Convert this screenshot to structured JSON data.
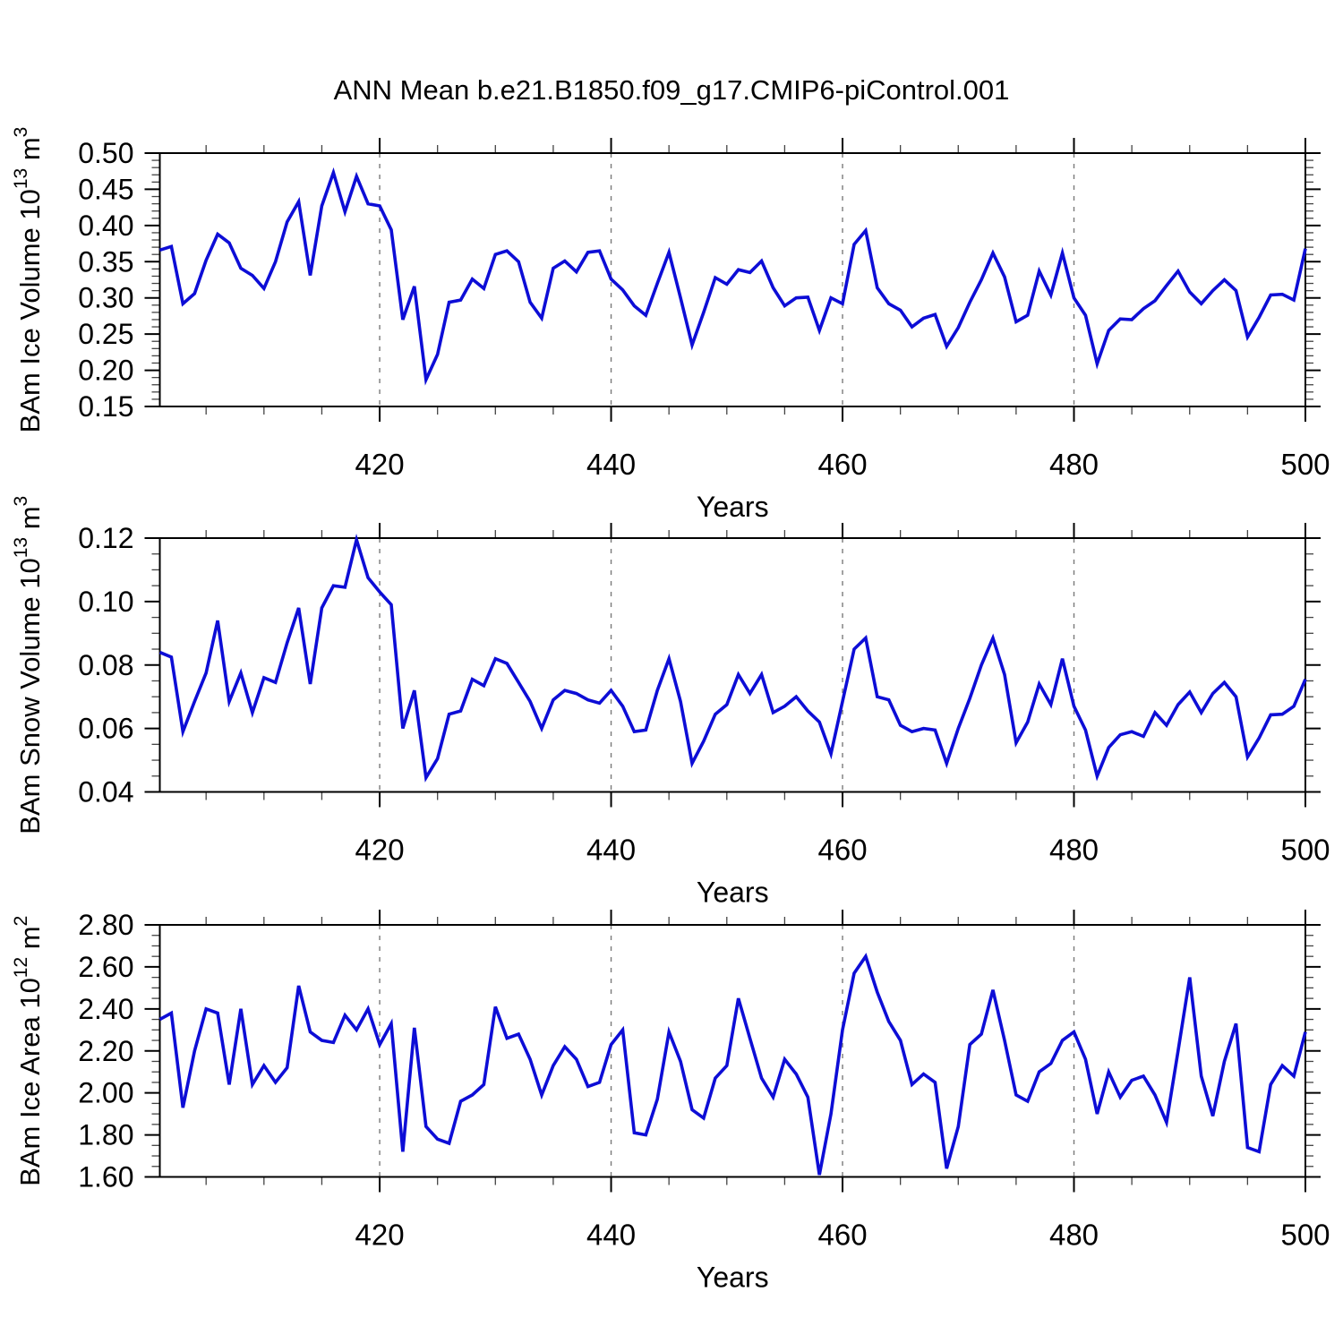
{
  "title": "ANN Mean b.e21.B1850.f09_g17.CMIP6-piControl.001",
  "colors": {
    "line": "#0d0dd6",
    "axis": "#000000",
    "gridline": "#7a7a7a",
    "background": "#ffffff"
  },
  "x_axis": {
    "label": "Years",
    "range": [
      401,
      500
    ],
    "major_ticks": [
      420,
      440,
      460,
      480,
      500
    ],
    "major_tick_labels": [
      "420",
      "440",
      "460",
      "480",
      "500"
    ],
    "minor_tick_step": 5,
    "gridline_years": [
      420,
      440,
      460,
      480
    ]
  },
  "chart_data": [
    {
      "type": "line",
      "id": "ice-volume",
      "ylabel": "BAm Ice Volume 10^13 m^3",
      "ylabel_segments": [
        {
          "t": "BAm Ice Volume 10"
        },
        {
          "t": "13",
          "sup": true
        },
        {
          "t": " m"
        },
        {
          "t": "3",
          "sup": true
        }
      ],
      "ylim": [
        0.15,
        0.5
      ],
      "ytick_step": 0.05,
      "yminor_step": 0.01,
      "ytick_labels": [
        "0.15",
        "0.20",
        "0.25",
        "0.30",
        "0.35",
        "0.40",
        "0.45",
        "0.50"
      ],
      "x_start": 401,
      "values": [
        0.366,
        0.371,
        0.292,
        0.306,
        0.352,
        0.388,
        0.376,
        0.341,
        0.331,
        0.313,
        0.35,
        0.405,
        0.433,
        0.331,
        0.427,
        0.473,
        0.419,
        0.468,
        0.43,
        0.427,
        0.394,
        0.27,
        0.316,
        0.187,
        0.222,
        0.294,
        0.297,
        0.326,
        0.313,
        0.36,
        0.365,
        0.35,
        0.294,
        0.272,
        0.341,
        0.351,
        0.336,
        0.363,
        0.365,
        0.326,
        0.311,
        0.289,
        0.276,
        0.32,
        0.363,
        0.3,
        0.235,
        0.28,
        0.328,
        0.319,
        0.339,
        0.335,
        0.351,
        0.314,
        0.289,
        0.3,
        0.301,
        0.255,
        0.3,
        0.292,
        0.374,
        0.393,
        0.314,
        0.292,
        0.283,
        0.26,
        0.272,
        0.277,
        0.233,
        0.259,
        0.294,
        0.325,
        0.362,
        0.329,
        0.267,
        0.276,
        0.337,
        0.304,
        0.362,
        0.3,
        0.276,
        0.209,
        0.255,
        0.271,
        0.27,
        0.285,
        0.296,
        0.317,
        0.337,
        0.308,
        0.292,
        0.31,
        0.325,
        0.31,
        0.246,
        0.273,
        0.304,
        0.305,
        0.297,
        0.368
      ]
    },
    {
      "type": "line",
      "id": "snow-volume",
      "ylabel": "BAm Snow Volume 10^13 m^3",
      "ylabel_segments": [
        {
          "t": "BAm Snow Volume 10"
        },
        {
          "t": "13",
          "sup": true
        },
        {
          "t": " m"
        },
        {
          "t": "3",
          "sup": true
        }
      ],
      "ylim": [
        0.04,
        0.12
      ],
      "ytick_step": 0.02,
      "yminor_step": 0.005,
      "ytick_labels": [
        "0.04",
        "0.06",
        "0.08",
        "0.10",
        "0.12"
      ],
      "x_start": 401,
      "values": [
        0.084,
        0.0825,
        0.059,
        0.0685,
        0.0775,
        0.094,
        0.0685,
        0.0775,
        0.065,
        0.076,
        0.0745,
        0.087,
        0.098,
        0.074,
        0.098,
        0.105,
        0.1045,
        0.1195,
        0.1075,
        0.103,
        0.099,
        0.06,
        0.072,
        0.0445,
        0.0505,
        0.0645,
        0.0655,
        0.0755,
        0.0735,
        0.082,
        0.0805,
        0.0745,
        0.0685,
        0.06,
        0.069,
        0.072,
        0.071,
        0.069,
        0.068,
        0.072,
        0.067,
        0.059,
        0.0595,
        0.072,
        0.082,
        0.0685,
        0.049,
        0.056,
        0.0645,
        0.0675,
        0.077,
        0.071,
        0.077,
        0.065,
        0.067,
        0.07,
        0.0655,
        0.062,
        0.052,
        0.0685,
        0.085,
        0.0885,
        0.07,
        0.069,
        0.061,
        0.059,
        0.06,
        0.0595,
        0.049,
        0.06,
        0.0695,
        0.08,
        0.0885,
        0.077,
        0.0555,
        0.062,
        0.074,
        0.0675,
        0.082,
        0.067,
        0.0595,
        0.045,
        0.054,
        0.058,
        0.059,
        0.0575,
        0.065,
        0.061,
        0.0675,
        0.0715,
        0.065,
        0.071,
        0.0745,
        0.07,
        0.051,
        0.057,
        0.0643,
        0.0645,
        0.067,
        0.0755
      ]
    },
    {
      "type": "line",
      "id": "ice-area",
      "ylabel": "BAm Ice Area 10^12 m^2",
      "ylabel_segments": [
        {
          "t": "BAm Ice Area 10"
        },
        {
          "t": "12",
          "sup": true
        },
        {
          "t": " m"
        },
        {
          "t": "2",
          "sup": true
        }
      ],
      "ylim": [
        1.6,
        2.8
      ],
      "ytick_step": 0.2,
      "yminor_step": 0.05,
      "ytick_labels": [
        "1.60",
        "1.80",
        "2.00",
        "2.20",
        "2.40",
        "2.60",
        "2.80"
      ],
      "x_start": 401,
      "values": [
        2.35,
        2.38,
        1.93,
        2.2,
        2.4,
        2.38,
        2.04,
        2.4,
        2.04,
        2.13,
        2.05,
        2.12,
        2.51,
        2.29,
        2.25,
        2.24,
        2.37,
        2.3,
        2.4,
        2.23,
        2.33,
        1.72,
        2.31,
        1.84,
        1.78,
        1.76,
        1.96,
        1.99,
        2.04,
        2.41,
        2.26,
        2.28,
        2.16,
        1.99,
        2.13,
        2.22,
        2.16,
        2.03,
        2.05,
        2.23,
        2.3,
        1.81,
        1.8,
        1.97,
        2.29,
        2.15,
        1.92,
        1.88,
        2.07,
        2.13,
        2.45,
        2.26,
        2.07,
        1.98,
        2.16,
        2.09,
        1.98,
        1.61,
        1.9,
        2.3,
        2.57,
        2.65,
        2.48,
        2.34,
        2.25,
        2.04,
        2.09,
        2.05,
        1.64,
        1.84,
        2.23,
        2.28,
        2.49,
        2.25,
        1.99,
        1.96,
        2.1,
        2.14,
        2.25,
        2.29,
        2.16,
        1.9,
        2.1,
        1.98,
        2.06,
        2.08,
        1.99,
        1.86,
        2.2,
        2.55,
        2.08,
        1.89,
        2.15,
        2.33,
        1.74,
        1.72,
        2.04,
        2.13,
        2.08,
        2.29
      ]
    }
  ]
}
